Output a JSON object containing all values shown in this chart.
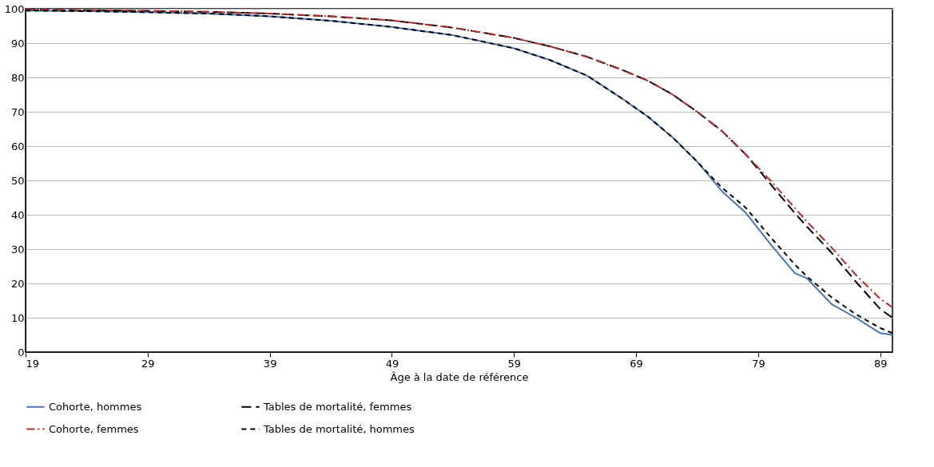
{
  "chart_data": {
    "type": "line",
    "xlabel": "Âge à la date de référence",
    "x": [
      19,
      24,
      29,
      34,
      39,
      44,
      49,
      54,
      59,
      62,
      65,
      68,
      70,
      72,
      74,
      76,
      78,
      80,
      82,
      83,
      85,
      87,
      89,
      90
    ],
    "series": [
      {
        "name": "Cohorte, hommes",
        "color": "#4a74b4",
        "line_style": "solid",
        "values": [
          99.5,
          99.3,
          99,
          98.6,
          97.8,
          96.5,
          94.7,
          92.3,
          88.5,
          85,
          80.5,
          73.5,
          68.5,
          62.5,
          55.5,
          47,
          40.5,
          31.5,
          23,
          21.5,
          14,
          10,
          5.5,
          5
        ]
      },
      {
        "name": "Tables de mortalité, femmes",
        "color": "#000000",
        "line_style": "dashed",
        "values": [
          99.7,
          99.6,
          99.4,
          99.1,
          98.6,
          97.8,
          96.6,
          94.5,
          91.5,
          89,
          86,
          82,
          79,
          75,
          70,
          64.5,
          57.5,
          49,
          40.5,
          36.5,
          29,
          20.5,
          12.5,
          10
        ]
      },
      {
        "name": "Cohorte, femmes",
        "color": "#b03030",
        "line_style": "dashed",
        "values": [
          99.7,
          99.6,
          99.4,
          99.1,
          98.6,
          97.8,
          96.6,
          94.5,
          91.5,
          89,
          86,
          82,
          79,
          75,
          70,
          64.5,
          57.5,
          50,
          42,
          38,
          30.5,
          22.5,
          15.5,
          13
        ]
      },
      {
        "name": "Tables de mortalité, hommes",
        "color": "#000000",
        "line_style": "dashed",
        "values": [
          99.5,
          99.3,
          99,
          98.6,
          97.8,
          96.5,
          94.7,
          92.3,
          88.5,
          85,
          80.5,
          73.5,
          68.5,
          62.5,
          55.5,
          48,
          42,
          33.5,
          25.5,
          22,
          16,
          11,
          7,
          5.5
        ]
      }
    ],
    "xlim": [
      19,
      90
    ],
    "xticks": [
      19,
      29,
      39,
      49,
      59,
      69,
      79,
      89
    ],
    "ylim": [
      0,
      100
    ],
    "yticks": [
      0,
      10,
      20,
      30,
      40,
      50,
      60,
      70,
      80,
      90,
      100
    ],
    "grid": "y",
    "legend": "bottom"
  }
}
